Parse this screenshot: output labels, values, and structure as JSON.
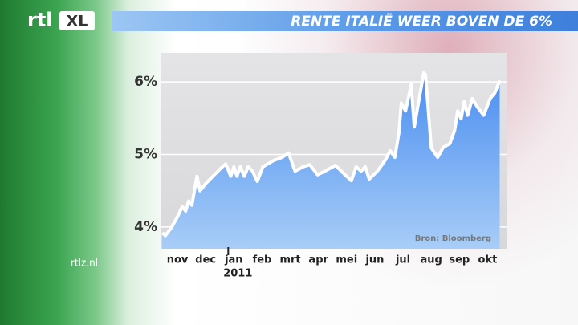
{
  "logo": {
    "main": "rtl",
    "badge": "XL"
  },
  "site": "rtlz.nl",
  "chart_data": {
    "type": "area",
    "title": "RENTE ITALIË WEER BOVEN DE 6%",
    "annotations": {
      "year": "2011",
      "source": "Bron: Bloomberg"
    },
    "color": "#ffffff",
    "fill": "#4a8ef0",
    "series": [
      {
        "x": [
          -0.54,
          -0.43,
          -0.2,
          0,
          0.17,
          0.29,
          0.4,
          0.51,
          0.69,
          0.8,
          1.03,
          1.26,
          1.54,
          1.71,
          1.89,
          2,
          2.11,
          2.23,
          2.37,
          2.51,
          2.66,
          2.83,
          3.03,
          3.2,
          3.43,
          3.71,
          3.94,
          4.17,
          4.46,
          4.69,
          4.97,
          5.23,
          5.6,
          5.89,
          6.17,
          6.34,
          6.51,
          6.66,
          6.8,
          7.09,
          7.37,
          7.54,
          7.71,
          7.86,
          7.94,
          8.09,
          8.29,
          8.4,
          8.51,
          8.74,
          8.8,
          9,
          9.23,
          9.43,
          9.66,
          9.83,
          9.94,
          10.06,
          10.17,
          10.29,
          10.46,
          10.63,
          10.86,
          11.09,
          11.26,
          11.43
        ],
        "values": [
          3.92,
          3.88,
          4.0,
          4.14,
          4.28,
          4.22,
          4.36,
          4.3,
          4.7,
          4.5,
          4.61,
          4.7,
          4.81,
          4.87,
          4.7,
          4.83,
          4.7,
          4.83,
          4.7,
          4.83,
          4.77,
          4.63,
          4.83,
          4.87,
          4.92,
          4.96,
          5.02,
          4.77,
          4.83,
          4.86,
          4.72,
          4.77,
          4.85,
          4.74,
          4.64,
          4.83,
          4.77,
          4.83,
          4.66,
          4.77,
          4.92,
          5.05,
          4.96,
          5.31,
          5.71,
          5.6,
          5.96,
          5.38,
          5.63,
          6.13,
          6.1,
          5.09,
          4.96,
          5.1,
          5.15,
          5.33,
          5.6,
          5.49,
          5.73,
          5.54,
          5.77,
          5.66,
          5.54,
          5.77,
          5.85,
          6.02
        ]
      }
    ],
    "xlim": [
      -0.6,
      11.7
    ],
    "xticks": [
      {
        "value": 0,
        "label": "nov"
      },
      {
        "value": 1,
        "label": "dec"
      },
      {
        "value": 2,
        "label": "jan"
      },
      {
        "value": 3,
        "label": "feb"
      },
      {
        "value": 4,
        "label": "mrt"
      },
      {
        "value": 5,
        "label": "apr"
      },
      {
        "value": 6,
        "label": "mei"
      },
      {
        "value": 7,
        "label": "jun"
      },
      {
        "value": 8,
        "label": "jul"
      },
      {
        "value": 9,
        "label": "aug"
      },
      {
        "value": 10,
        "label": "sep"
      },
      {
        "value": 11,
        "label": "okt"
      }
    ],
    "ylim": [
      3.7,
      6.4
    ],
    "yticks": [
      {
        "value": 4,
        "label": "4%"
      },
      {
        "value": 5,
        "label": "5%"
      },
      {
        "value": 6,
        "label": "6%"
      }
    ],
    "grid": true
  }
}
